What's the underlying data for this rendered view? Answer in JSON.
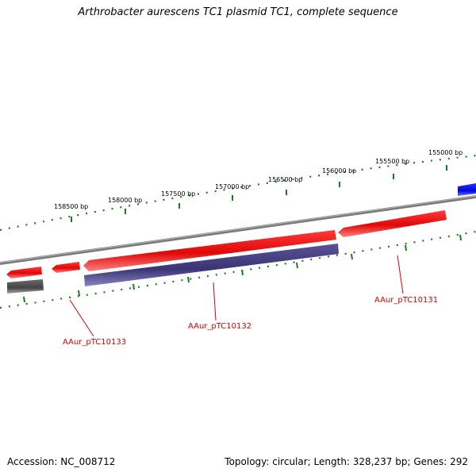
{
  "title": "Arthrobacter aurescens TC1 plasmid TC1, complete sequence",
  "footer": {
    "accession": "Accession: NC_008712",
    "summary": "Topology: circular; Length: 328,237 bp; Genes: 292"
  },
  "scale": {
    "labels": [
      "158500 bp",
      "158000 bp",
      "157500 bp",
      "157000 bp",
      "156500 bp",
      "156000 bp",
      "155500 bp",
      "155000 bp"
    ]
  },
  "genes": [
    {
      "name": "AAur_pTC10133",
      "color": "#dd0000"
    },
    {
      "name": "AAur_pTC10132",
      "color": "#dd0000"
    },
    {
      "name": "AAur_pTC10131",
      "color": "#dd0000"
    }
  ],
  "colors": {
    "forward_feature": "#e81010",
    "reverse_feature": "#433d7c",
    "gray_feature": "#555555",
    "blue_feature": "#0a12e0",
    "backbone": "#808080",
    "ticks": "#1e7a1e"
  }
}
